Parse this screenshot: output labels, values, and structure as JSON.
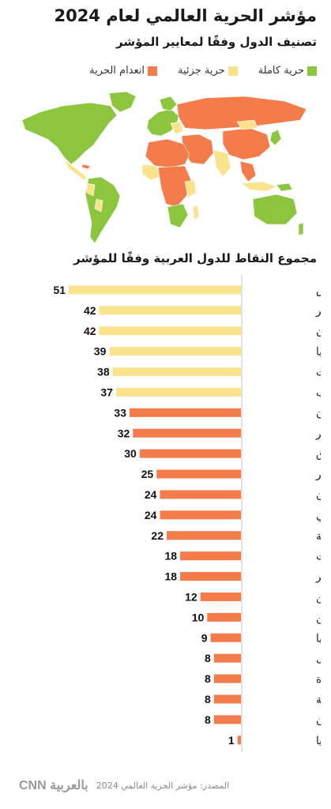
{
  "header": {
    "title": "مؤشر الحرية العالمي لعام 2024",
    "subtitle": "تصنيف الدول وفقًا لمعايير المؤشر"
  },
  "legend": [
    {
      "label": "حرية كاملة",
      "color": "#8cc63f"
    },
    {
      "label": "حرية جزئية",
      "color": "#fbe38e"
    },
    {
      "label": "انعدام الحرية",
      "color": "#f47c4a"
    }
  ],
  "colors": {
    "free": "#8cc63f",
    "partly_free": "#fbe38e",
    "not_free": "#f47c4a",
    "ocean": "#ffffff"
  },
  "chart_data": {
    "type": "bar",
    "orientation": "horizontal",
    "title": "مجموع النقاط للدول العربية وفقًا للمؤشر",
    "categories": [
      "تونس",
      "جزر القمر",
      "لبنان",
      "موريتانيا",
      "الكويت",
      "المغرب",
      "الأردن",
      "الجزائر",
      "العراق",
      "قطر",
      "سلطنة عُمان",
      "جيبوتي",
      "الضفة الغربية",
      "الإمارات",
      "مصر",
      "البحرين",
      "اليمن",
      "ليبيا",
      "الصومال",
      "قطاع غزة",
      "السعودية",
      "السودان",
      "سوريا"
    ],
    "values": [
      51,
      42,
      42,
      39,
      38,
      37,
      33,
      32,
      30,
      25,
      24,
      24,
      22,
      18,
      18,
      12,
      10,
      9,
      8,
      8,
      8,
      8,
      1
    ],
    "statuses": [
      "partly_free",
      "partly_free",
      "partly_free",
      "partly_free",
      "partly_free",
      "partly_free",
      "not_free",
      "not_free",
      "not_free",
      "not_free",
      "not_free",
      "not_free",
      "not_free",
      "not_free",
      "not_free",
      "not_free",
      "not_free",
      "not_free",
      "not_free",
      "not_free",
      "not_free",
      "not_free",
      "not_free"
    ],
    "xlim": [
      0,
      55
    ],
    "grid": false,
    "legend_position": "top-right"
  },
  "footer": {
    "logo": "CNN بالعربية",
    "source": "المصدر: مؤشر الحرية العالمي 2024"
  }
}
